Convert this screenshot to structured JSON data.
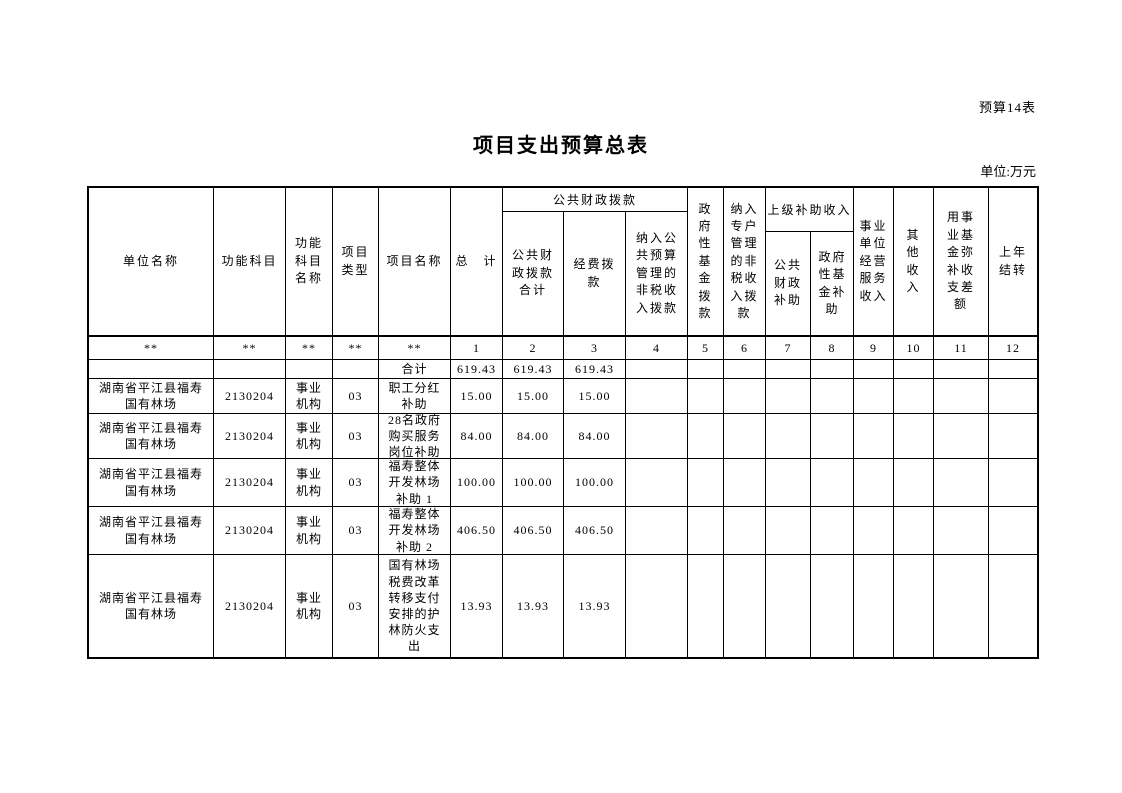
{
  "page": {
    "form_label": "预算14表",
    "title": "项目支出预算总表",
    "unit_label": "单位:万元"
  },
  "table": {
    "header": {
      "unit_name": "单位名称",
      "func_code": "功能科目",
      "func_name": "功能\n科目\n名称",
      "proj_type": "项目\n类型",
      "proj_name": "项目名称",
      "total": "总　计",
      "pf_group": "公共财政拨款",
      "pf_total": "公共财\n政拨款\n合计",
      "pf_fund": "经费拨\n款",
      "pf_nontax": "纳入公\n共预算\n管理的\n非税收\n入拨款",
      "gov_fund": "政\n府\n性\n基\n金\n拨\n款",
      "special_nontax": "纳入\n专户\n管理\n的非\n税收\n入拨\n款",
      "subsidy_group": "上级补助收入",
      "subsidy_pf": "公共\n财政\n补助",
      "subsidy_gf": "政府\n性基\n金补\n助",
      "business_income": "事业\n单位\n经营\n服务\n收入",
      "other_income": "其\n他\n收\n入",
      "fund_offset": "用事\n业基\n金弥\n补收\n支差\n额",
      "carryover": "上年\n结转"
    },
    "index_row": [
      "**",
      "**",
      "**",
      "**",
      "**",
      "1",
      "2",
      "3",
      "4",
      "5",
      "6",
      "7",
      "8",
      "9",
      "10",
      "11",
      "12"
    ],
    "total_row": [
      "",
      "",
      "",
      "",
      "合计",
      "619.43",
      "619.43",
      "619.43",
      "",
      "",
      "",
      "",
      "",
      "",
      "",
      "",
      ""
    ],
    "rows": [
      [
        "湖南省平江县福寿\n国有林场",
        "2130204",
        "事业\n机构",
        "03",
        "职工分红\n补助",
        "15.00",
        "15.00",
        "15.00",
        "",
        "",
        "",
        "",
        "",
        "",
        "",
        "",
        ""
      ],
      [
        "湖南省平江县福寿\n国有林场",
        "2130204",
        "事业\n机构",
        "03",
        "28名政府\n购买服务\n岗位补助",
        "84.00",
        "84.00",
        "84.00",
        "",
        "",
        "",
        "",
        "",
        "",
        "",
        "",
        ""
      ],
      [
        "湖南省平江县福寿\n国有林场",
        "2130204",
        "事业\n机构",
        "03",
        "福寿整体\n开发林场\n补助 1",
        "100.00",
        "100.00",
        "100.00",
        "",
        "",
        "",
        "",
        "",
        "",
        "",
        "",
        ""
      ],
      [
        "湖南省平江县福寿\n国有林场",
        "2130204",
        "事业\n机构",
        "03",
        "福寿整体\n开发林场\n补助 2",
        "406.50",
        "406.50",
        "406.50",
        "",
        "",
        "",
        "",
        "",
        "",
        "",
        "",
        ""
      ],
      [
        "湖南省平江县福寿\n国有林场",
        "2130204",
        "事业\n机构",
        "03",
        "国有林场\n税费改革\n转移支付\n安排的护\n林防火支\n出",
        "13.93",
        "13.93",
        "13.93",
        "",
        "",
        "",
        "",
        "",
        "",
        "",
        "",
        ""
      ]
    ]
  }
}
